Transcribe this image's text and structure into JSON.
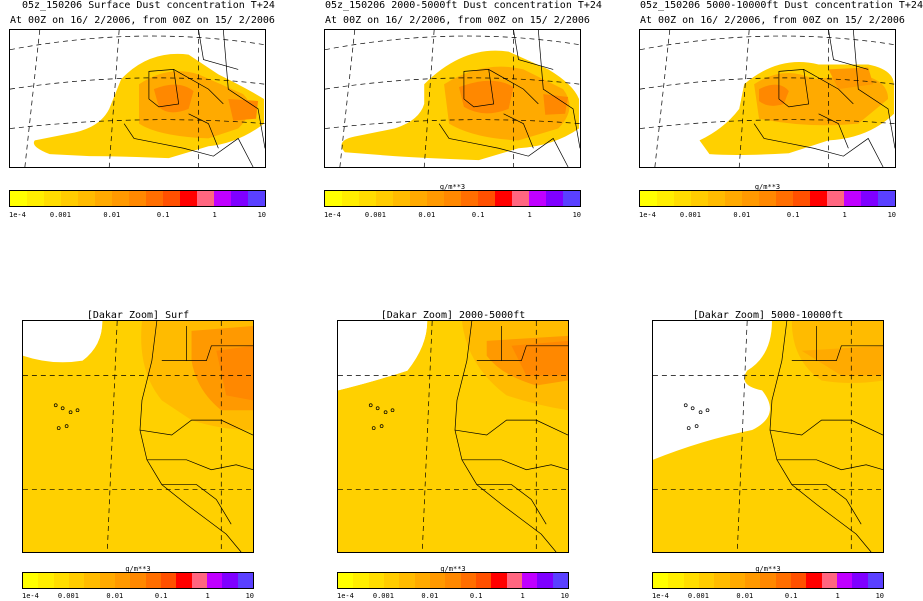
{
  "top_panels": [
    {
      "title": "05z_150206 Surface Dust concentration T+24",
      "subtitle": "At 00Z on 16/ 2/2006, from 00Z on 15/ 2/2006",
      "colorbar_unit": ""
    },
    {
      "title": "05z_150206 2000-5000ft Dust concentration T+24",
      "subtitle": "At 00Z on 16/ 2/2006, from 00Z on 15/ 2/2006",
      "colorbar_unit": "g/m**3"
    },
    {
      "title": "05z_150206 5000-10000ft Dust concentration T+24",
      "subtitle": "At 00Z on 16/ 2/2006, from 00Z on 15/ 2/2006",
      "colorbar_unit": "g/m**3"
    }
  ],
  "bottom_panels": [
    {
      "title": "[Dakar Zoom] Surf",
      "colorbar_unit": "g/m**3"
    },
    {
      "title": "[Dakar Zoom] 2000-5000ft",
      "colorbar_unit": "g/m**3"
    },
    {
      "title": "[Dakar Zoom] 5000-10000ft",
      "colorbar_unit": "g/m**3"
    }
  ],
  "colorbar": {
    "colors": [
      "#ffff00",
      "#ffee00",
      "#ffdd00",
      "#ffcc00",
      "#ffbb00",
      "#ffaa00",
      "#ff9900",
      "#ff8800",
      "#ff6e00",
      "#ff5000",
      "#ff0000",
      "#ff6680",
      "#c000ff",
      "#7f00ff",
      "#5a40ff"
    ],
    "tick_labels": [
      "1e-4",
      "0.001",
      "0.01",
      "0.1",
      "1",
      "10"
    ]
  }
}
